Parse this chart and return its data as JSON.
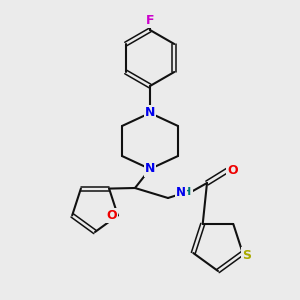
{
  "bg_color": "#ebebeb",
  "atom_colors": {
    "N": "#0000ee",
    "O": "#ee0000",
    "S": "#aaaa00",
    "F": "#cc00cc",
    "C": "#111111",
    "H": "#007777"
  },
  "bond_color": "#111111",
  "title": ""
}
